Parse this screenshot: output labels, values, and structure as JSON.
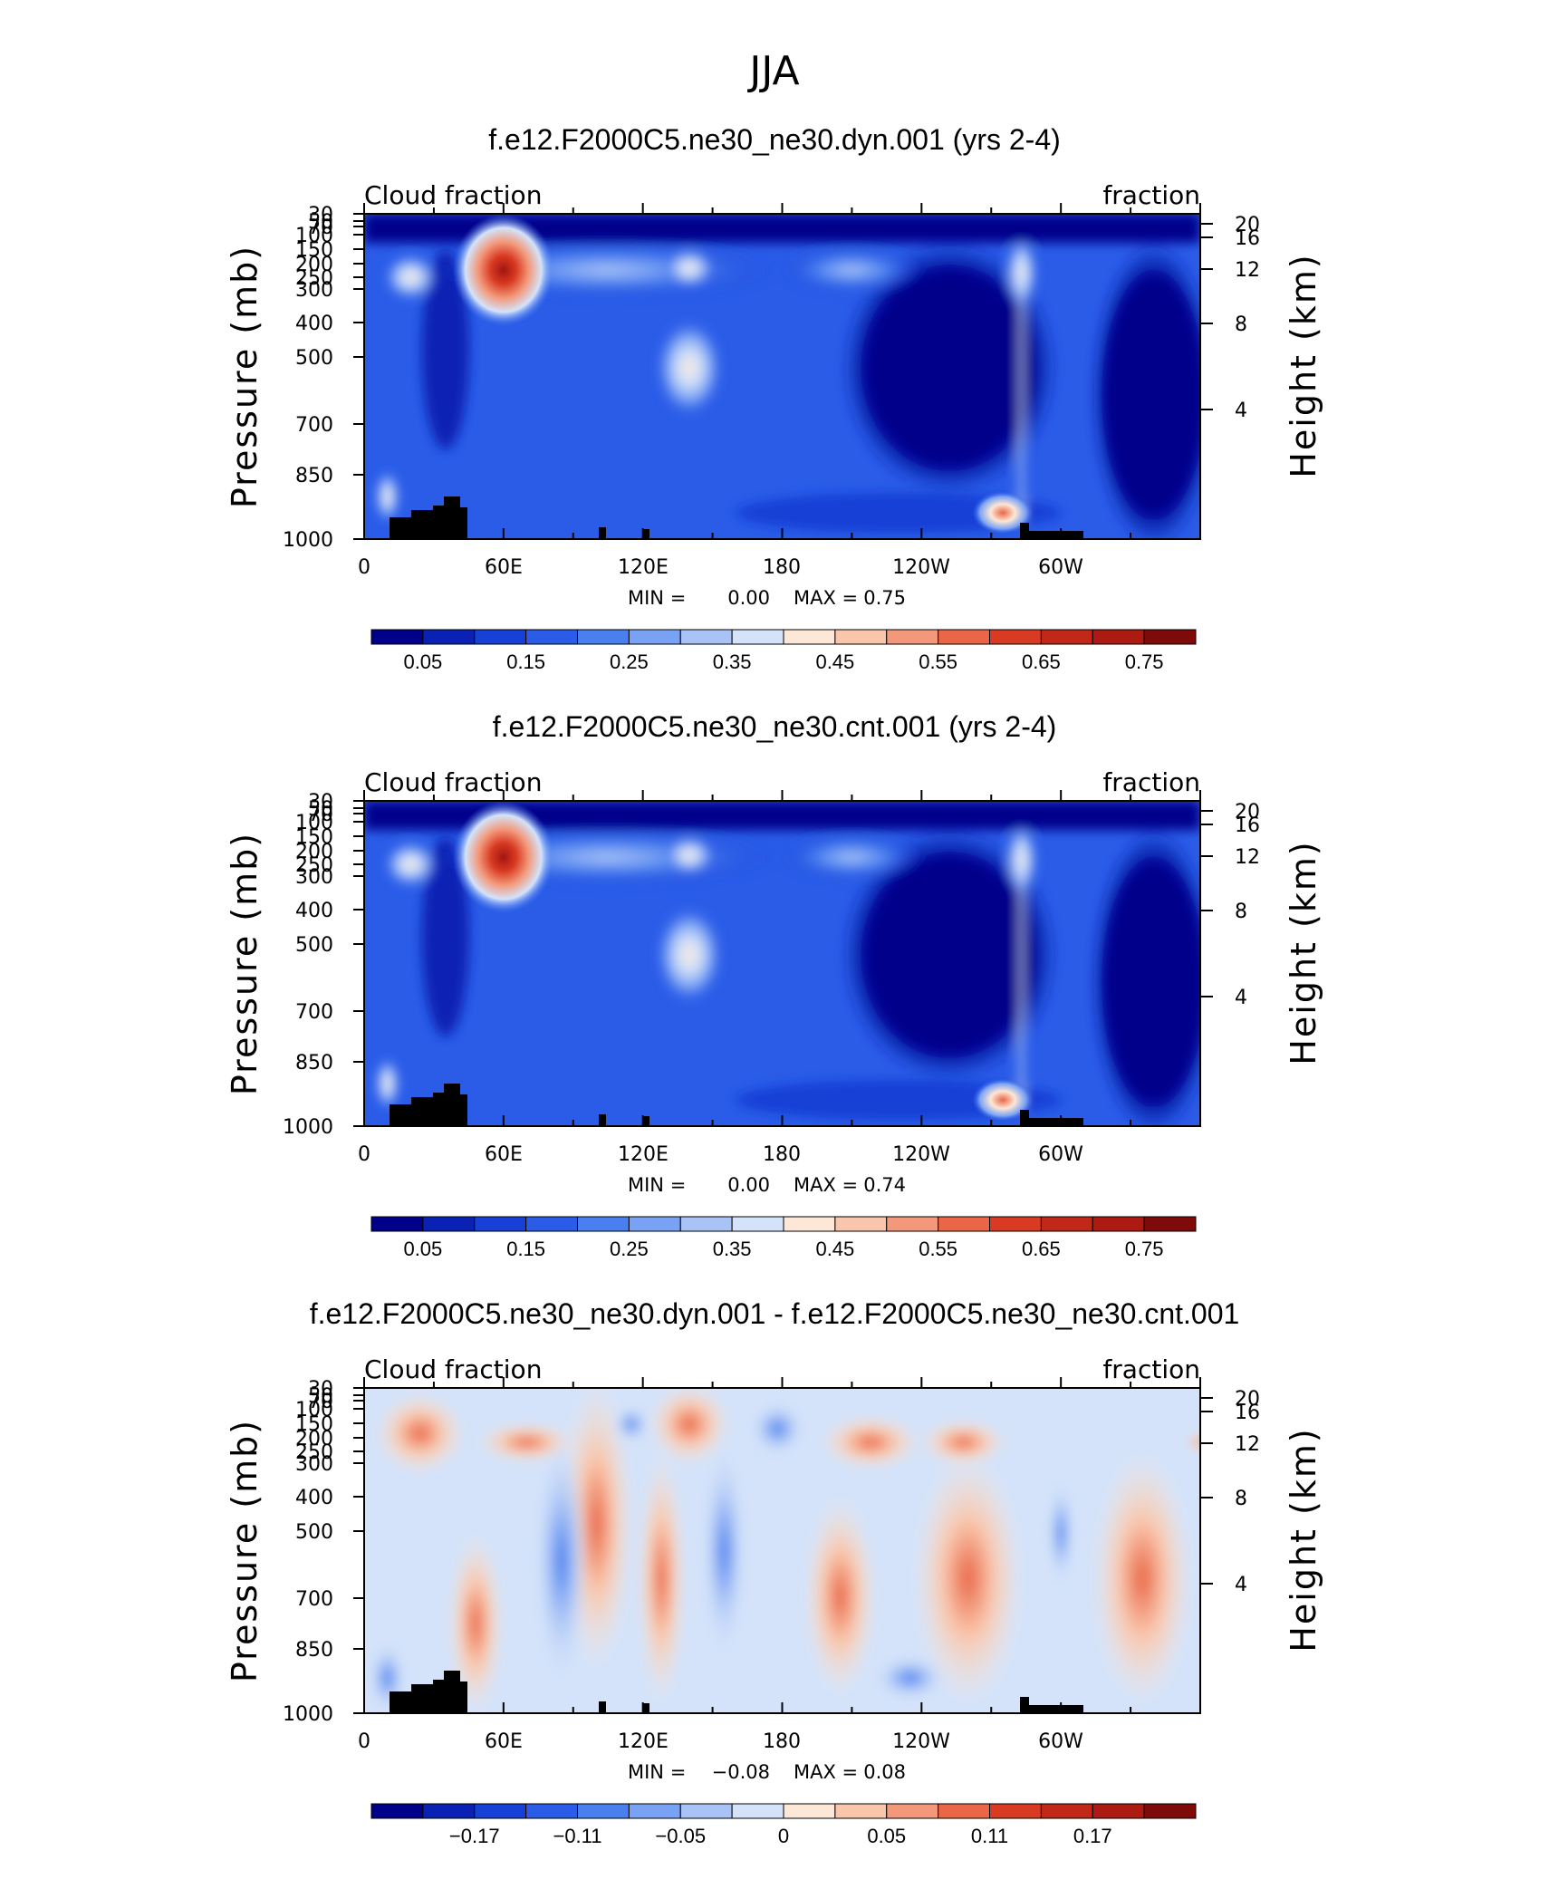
{
  "figure": {
    "title": "JJA"
  },
  "colors": {
    "abs_scale": [
      "#00008b",
      "#0a22b4",
      "#1640d6",
      "#2a5ce8",
      "#4a7ff0",
      "#7aa2f4",
      "#a9c3f6",
      "#d4e3fa",
      "#fde7d6",
      "#f9c5ab",
      "#f3987a",
      "#ea6646",
      "#d83a22",
      "#ad1a12",
      "#7e0a0a"
    ],
    "diff_scale": [
      "#00008b",
      "#0a22b4",
      "#1640d6",
      "#2a5ce8",
      "#4a7ff0",
      "#7aa2f4",
      "#a9c3f6",
      "#d4e3fa",
      "#fde7d6",
      "#f9c5ab",
      "#f3987a",
      "#ea6646",
      "#d83a22",
      "#ad1a12",
      "#7e0a0a"
    ],
    "topography": "#000000"
  },
  "chart_data": [
    {
      "type": "heatmap",
      "title": "f.e12.F2000C5.ne30_ne30.dyn.001 (yrs 2-4)",
      "left_label": "Cloud fraction",
      "right_label": "fraction",
      "ylabel": "Pressure (mb)",
      "ylabel_right": "Height (km)",
      "x_ticks": [
        "0",
        "60E",
        "120E",
        "180",
        "120W",
        "60W"
      ],
      "y_ticks": [
        "30",
        "50",
        "70",
        "100",
        "150",
        "200",
        "250",
        "300",
        "400",
        "500",
        "700",
        "850",
        "1000"
      ],
      "y_ticks_right": [
        "20",
        "16",
        "12",
        "8",
        "4"
      ],
      "stats": {
        "min_label": "MIN =",
        "min": "0.00",
        "max_label": "MAX =",
        "max": "0.75"
      },
      "colorbar_labels": [
        "0.05",
        "0.15",
        "0.25",
        "0.35",
        "0.45",
        "0.55",
        "0.65",
        "0.75"
      ],
      "features": [
        {
          "lon": 60,
          "p": 200,
          "value": 0.73
        },
        {
          "lon": 140,
          "p": 500,
          "value": 0.42
        },
        {
          "lon": 275,
          "p": 950,
          "value": 0.6
        },
        {
          "lon": 283,
          "p": 200,
          "value": 0.45
        },
        {
          "lon": 250,
          "p": 500,
          "value": 0.02
        },
        {
          "lon": 35,
          "p": 400,
          "value": 0.05
        }
      ]
    },
    {
      "type": "heatmap",
      "title": "f.e12.F2000C5.ne30_ne30.cnt.001 (yrs 2-4)",
      "left_label": "Cloud fraction",
      "right_label": "fraction",
      "ylabel": "Pressure (mb)",
      "ylabel_right": "Height (km)",
      "x_ticks": [
        "0",
        "60E",
        "120E",
        "180",
        "120W",
        "60W"
      ],
      "y_ticks": [
        "30",
        "50",
        "70",
        "100",
        "150",
        "200",
        "250",
        "300",
        "400",
        "500",
        "700",
        "850",
        "1000"
      ],
      "y_ticks_right": [
        "20",
        "16",
        "12",
        "8",
        "4"
      ],
      "stats": {
        "min_label": "MIN =",
        "min": "0.00",
        "max_label": "MAX =",
        "max": "0.74"
      },
      "colorbar_labels": [
        "0.05",
        "0.15",
        "0.25",
        "0.35",
        "0.45",
        "0.55",
        "0.65",
        "0.75"
      ],
      "features": [
        {
          "lon": 60,
          "p": 200,
          "value": 0.72
        },
        {
          "lon": 140,
          "p": 500,
          "value": 0.42
        },
        {
          "lon": 275,
          "p": 950,
          "value": 0.6
        },
        {
          "lon": 283,
          "p": 200,
          "value": 0.45
        },
        {
          "lon": 250,
          "p": 500,
          "value": 0.02
        },
        {
          "lon": 35,
          "p": 400,
          "value": 0.05
        }
      ]
    },
    {
      "type": "heatmap",
      "title": "f.e12.F2000C5.ne30_ne30.dyn.001 - f.e12.F2000C5.ne30_ne30.cnt.001",
      "left_label": "Cloud fraction",
      "right_label": "fraction",
      "ylabel": "Pressure (mb)",
      "ylabel_right": "Height (km)",
      "x_ticks": [
        "0",
        "60E",
        "120E",
        "180",
        "120W",
        "60W"
      ],
      "y_ticks": [
        "30",
        "50",
        "70",
        "100",
        "150",
        "200",
        "250",
        "300",
        "400",
        "500",
        "700",
        "850",
        "1000"
      ],
      "y_ticks_right": [
        "20",
        "16",
        "12",
        "8",
        "4"
      ],
      "stats": {
        "min_label": "MIN =",
        "min": "−0.08",
        "max_label": "MAX =",
        "max": "0.08"
      },
      "colorbar_labels": [
        "−0.17",
        "−0.11",
        "−0.05",
        "0",
        "0.05",
        "0.11",
        "0.17"
      ],
      "features": [
        {
          "lon": 25,
          "p": 200,
          "value": 0.07
        },
        {
          "lon": 65,
          "p": 150,
          "value": 0.06
        },
        {
          "lon": 140,
          "p": 170,
          "value": 0.06
        },
        {
          "lon": 180,
          "p": 170,
          "value": -0.06
        },
        {
          "lon": 155,
          "p": 500,
          "value": -0.05
        },
        {
          "lon": 255,
          "p": 200,
          "value": 0.05
        }
      ]
    }
  ]
}
